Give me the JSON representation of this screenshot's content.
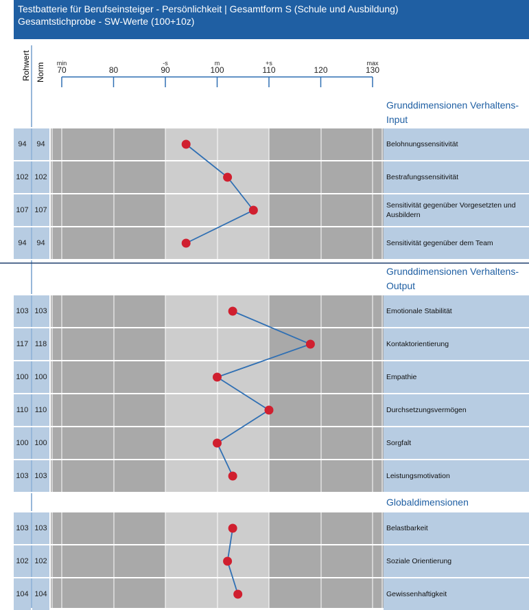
{
  "header": {
    "title_line1": "Testbatterie für Berufseinsteiger - Persönlichkeit | Gesamtform S (Schule und Ausbildung)",
    "title_line2": "Gesamtstichprobe - SW-Werte (100+10z)"
  },
  "columns": {
    "rohwert": "Rohwert",
    "norm": "Norm"
  },
  "colors": {
    "header_bg": "#1f5fa3",
    "cell_bg": "#b7cce2",
    "band_dark": "#a9a9a9",
    "band_light": "#cdcdcd",
    "line": "#2f6fb3",
    "point": "#d01f2f",
    "section_text": "#1f5fa3"
  },
  "chart_data": {
    "type": "line",
    "orientation": "horizontal-profile",
    "xlim": [
      70,
      130
    ],
    "x_ticks": [
      {
        "value": 70,
        "label": "70",
        "marker": "min"
      },
      {
        "value": 80,
        "label": "80",
        "marker": ""
      },
      {
        "value": 90,
        "label": "90",
        "marker": "-s"
      },
      {
        "value": 100,
        "label": "100",
        "marker": "m"
      },
      {
        "value": 110,
        "label": "110",
        "marker": "+s"
      },
      {
        "value": 120,
        "label": "120",
        "marker": ""
      },
      {
        "value": 130,
        "label": "130",
        "marker": "max"
      }
    ],
    "sections": [
      {
        "title_line1": "Grunddimensionen Verhaltens-",
        "title_line2": "Input",
        "rows": [
          {
            "label": "Belohnungssensitivität",
            "rohwert": "94",
            "norm": 94
          },
          {
            "label": "Bestrafungssensitivität",
            "rohwert": "102",
            "norm": 102
          },
          {
            "label": "Sensitivität gegenüber Vorgesetzten und Ausbildern",
            "rohwert": "107",
            "norm": 107
          },
          {
            "label": "Sensitivität gegenüber dem Team",
            "rohwert": "94",
            "norm": 94
          }
        ]
      },
      {
        "title_line1": "Grunddimensionen Verhaltens-",
        "title_line2": "Output",
        "rows": [
          {
            "label": "Emotionale Stabilität",
            "rohwert": "103",
            "norm": 103
          },
          {
            "label": "Kontaktorientierung",
            "rohwert": "117",
            "norm": 118
          },
          {
            "label": "Empathie",
            "rohwert": "100",
            "norm": 100
          },
          {
            "label": "Durchsetzungsvermögen",
            "rohwert": "110",
            "norm": 110
          },
          {
            "label": "Sorgfalt",
            "rohwert": "100",
            "norm": 100
          },
          {
            "label": "Leistungsmotivation",
            "rohwert": "103",
            "norm": 103
          }
        ]
      },
      {
        "title_line1": "Globaldimensionen",
        "title_line2": "",
        "rows": [
          {
            "label": "Belastbarkeit",
            "rohwert": "103",
            "norm": 103
          },
          {
            "label": "Soziale Orientierung",
            "rohwert": "102",
            "norm": 102
          },
          {
            "label": "Gewissenhaftigkeit",
            "rohwert": "104",
            "norm": 104
          }
        ]
      }
    ]
  }
}
